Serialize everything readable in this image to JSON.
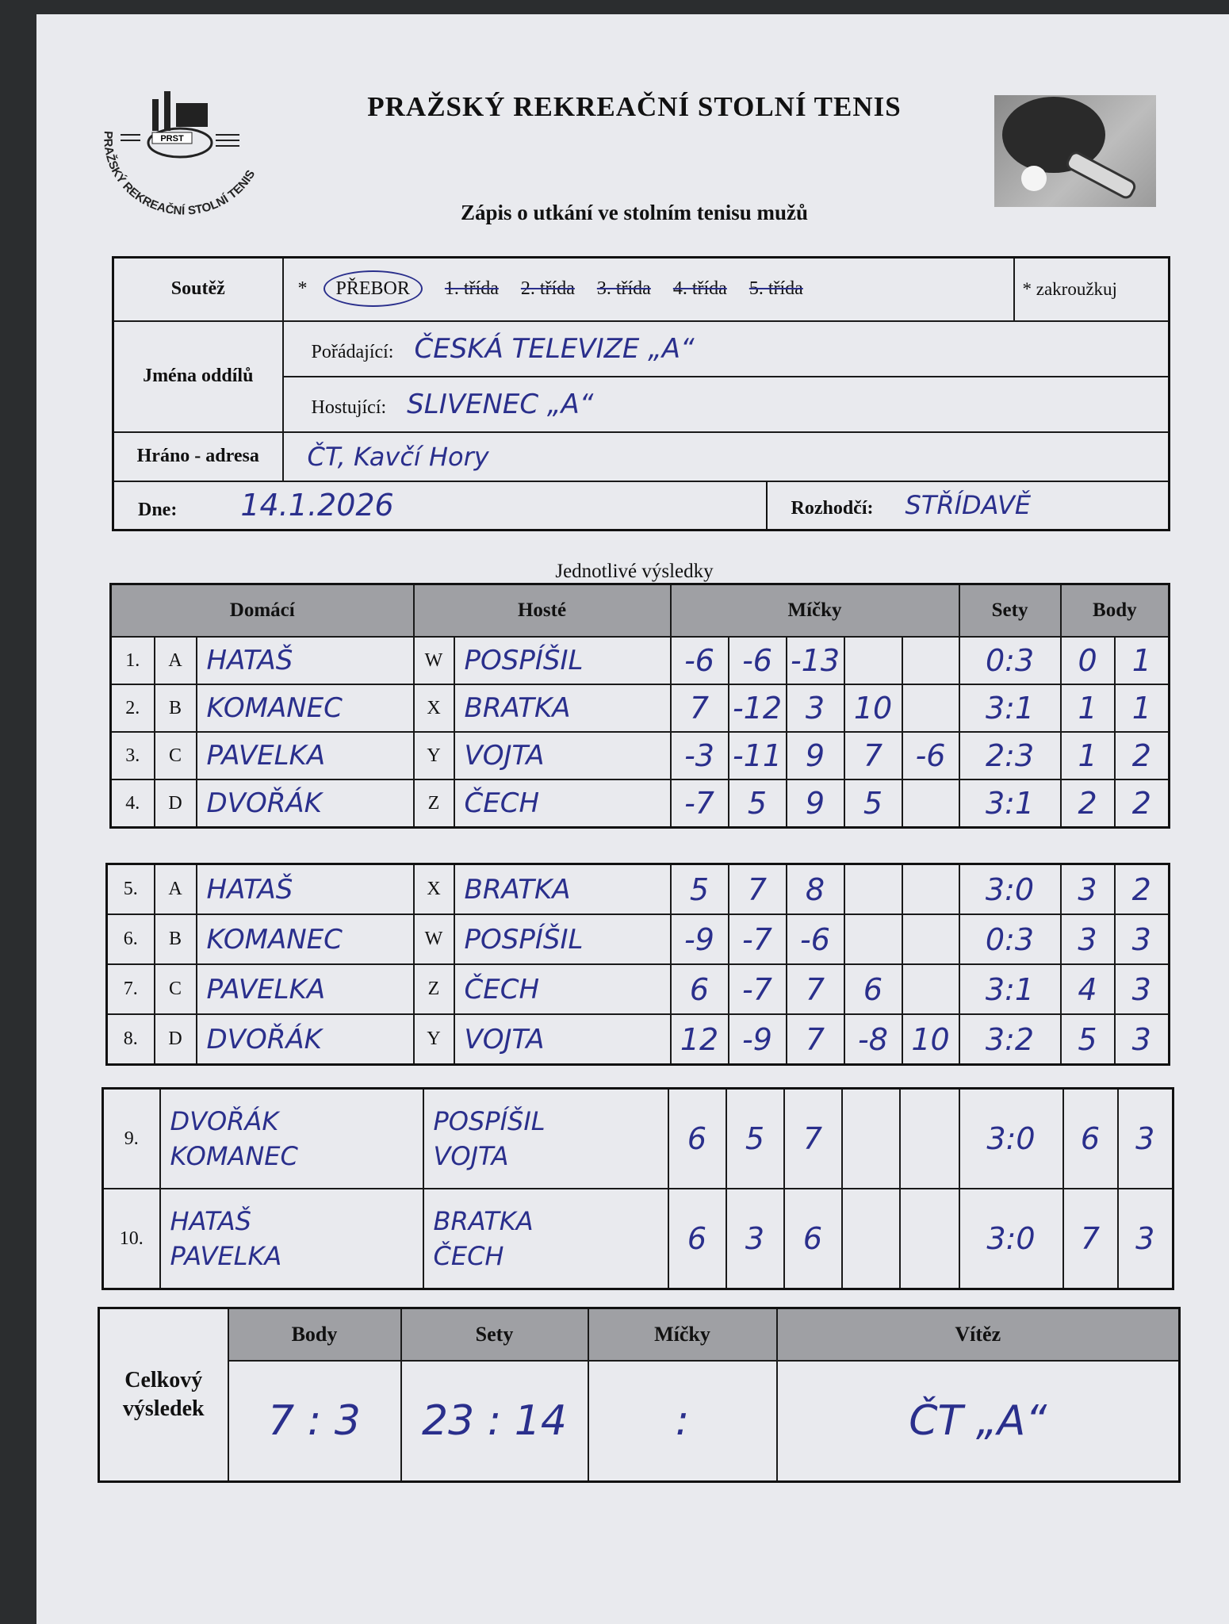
{
  "header": {
    "title": "PRAŽSKÝ REKREAČNÍ STOLNÍ TENIS",
    "subtitle": "Zápis o utkání ve stolním tenisu mužů",
    "logo": {
      "ring_text": "PRAŽSKÝ REKREAČNÍ STOLNÍ TENIS",
      "badge_text": "PRST"
    }
  },
  "info": {
    "soutez_label": "Soutěž",
    "asterisk": "*",
    "classes": [
      {
        "label": "PŘEBOR",
        "selected": true
      },
      {
        "label": "1. třída",
        "selected": false
      },
      {
        "label": "2. třída",
        "selected": false
      },
      {
        "label": "3. třída",
        "selected": false
      },
      {
        "label": "4. třída",
        "selected": false
      },
      {
        "label": "5. třída",
        "selected": false
      }
    ],
    "circle_note": "* zakroužkuj",
    "team_names_label": "Jména oddílů",
    "home_label": "Pořádající:",
    "home_value": "ČESKÁ TELEVIZE „A“",
    "guest_label": "Hostující:",
    "guest_value": "SLIVENEC „A“",
    "venue_label": "Hráno - adresa",
    "venue_value": "ČT, Kavčí Hory",
    "date_label": "Dne:",
    "date_value": "14.1.2026",
    "referee_label": "Rozhodčí:",
    "referee_value": "STŘÍDAVĚ"
  },
  "results": {
    "section_title": "Jednotlivé výsledky",
    "headers": {
      "home": "Domácí",
      "guest": "Hosté",
      "balls": "Míčky",
      "sets": "Sety",
      "points": "Body"
    },
    "singles_block1": [
      {
        "no": "1.",
        "hl": "A",
        "home": "HATAŠ",
        "gl": "W",
        "guest": "POSPÍŠIL",
        "balls": [
          "-6",
          "-6",
          "-13",
          "",
          ""
        ],
        "sets": "0:3",
        "ph": "0",
        "pg": "1"
      },
      {
        "no": "2.",
        "hl": "B",
        "home": "KOMANEC",
        "gl": "X",
        "guest": "BRATKA",
        "balls": [
          "7",
          "-12",
          "3",
          "10",
          ""
        ],
        "sets": "3:1",
        "ph": "1",
        "pg": "1"
      },
      {
        "no": "3.",
        "hl": "C",
        "home": "PAVELKA",
        "gl": "Y",
        "guest": "VOJTA",
        "balls": [
          "-3",
          "-11",
          "9",
          "7",
          "-6"
        ],
        "sets": "2:3",
        "ph": "1",
        "pg": "2"
      },
      {
        "no": "4.",
        "hl": "D",
        "home": "DVOŘÁK",
        "gl": "Z",
        "guest": "ČECH",
        "balls": [
          "-7",
          "5",
          "9",
          "5",
          ""
        ],
        "sets": "3:1",
        "ph": "2",
        "pg": "2"
      }
    ],
    "singles_block2": [
      {
        "no": "5.",
        "hl": "A",
        "home": "HATAŠ",
        "gl": "X",
        "guest": "BRATKA",
        "balls": [
          "5",
          "7",
          "8",
          "",
          ""
        ],
        "sets": "3:0",
        "ph": "3",
        "pg": "2"
      },
      {
        "no": "6.",
        "hl": "B",
        "home": "KOMANEC",
        "gl": "W",
        "guest": "POSPÍŠIL",
        "balls": [
          "-9",
          "-7",
          "-6",
          "",
          ""
        ],
        "sets": "0:3",
        "ph": "3",
        "pg": "3"
      },
      {
        "no": "7.",
        "hl": "C",
        "home": "PAVELKA",
        "gl": "Z",
        "guest": "ČECH",
        "balls": [
          "6",
          "-7",
          "7",
          "6",
          ""
        ],
        "sets": "3:1",
        "ph": "4",
        "pg": "3"
      },
      {
        "no": "8.",
        "hl": "D",
        "home": "DVOŘÁK",
        "gl": "Y",
        "guest": "VOJTA",
        "balls": [
          "12",
          "-9",
          "7",
          "-8",
          "10"
        ],
        "sets": "3:2",
        "ph": "5",
        "pg": "3"
      }
    ],
    "doubles": [
      {
        "no": "9.",
        "home": [
          "DVOŘÁK",
          "KOMANEC"
        ],
        "guest": [
          "POSPÍŠIL",
          "VOJTA"
        ],
        "balls": [
          "6",
          "5",
          "7",
          "",
          ""
        ],
        "sets": "3:0",
        "ph": "6",
        "pg": "3"
      },
      {
        "no": "10.",
        "home": [
          "HATAŠ",
          "PAVELKA"
        ],
        "guest": [
          "BRATKA",
          "ČECH"
        ],
        "balls": [
          "6",
          "3",
          "6",
          "",
          ""
        ],
        "sets": "3:0",
        "ph": "7",
        "pg": "3"
      }
    ]
  },
  "total": {
    "label": "Celkový výsledek",
    "points_label": "Body",
    "points": "7 : 3",
    "sets_label": "Sety",
    "sets": "23 : 14",
    "balls_label": "Míčky",
    "balls": ":",
    "winner_label": "Vítěz",
    "winner": "ČT „A“"
  }
}
